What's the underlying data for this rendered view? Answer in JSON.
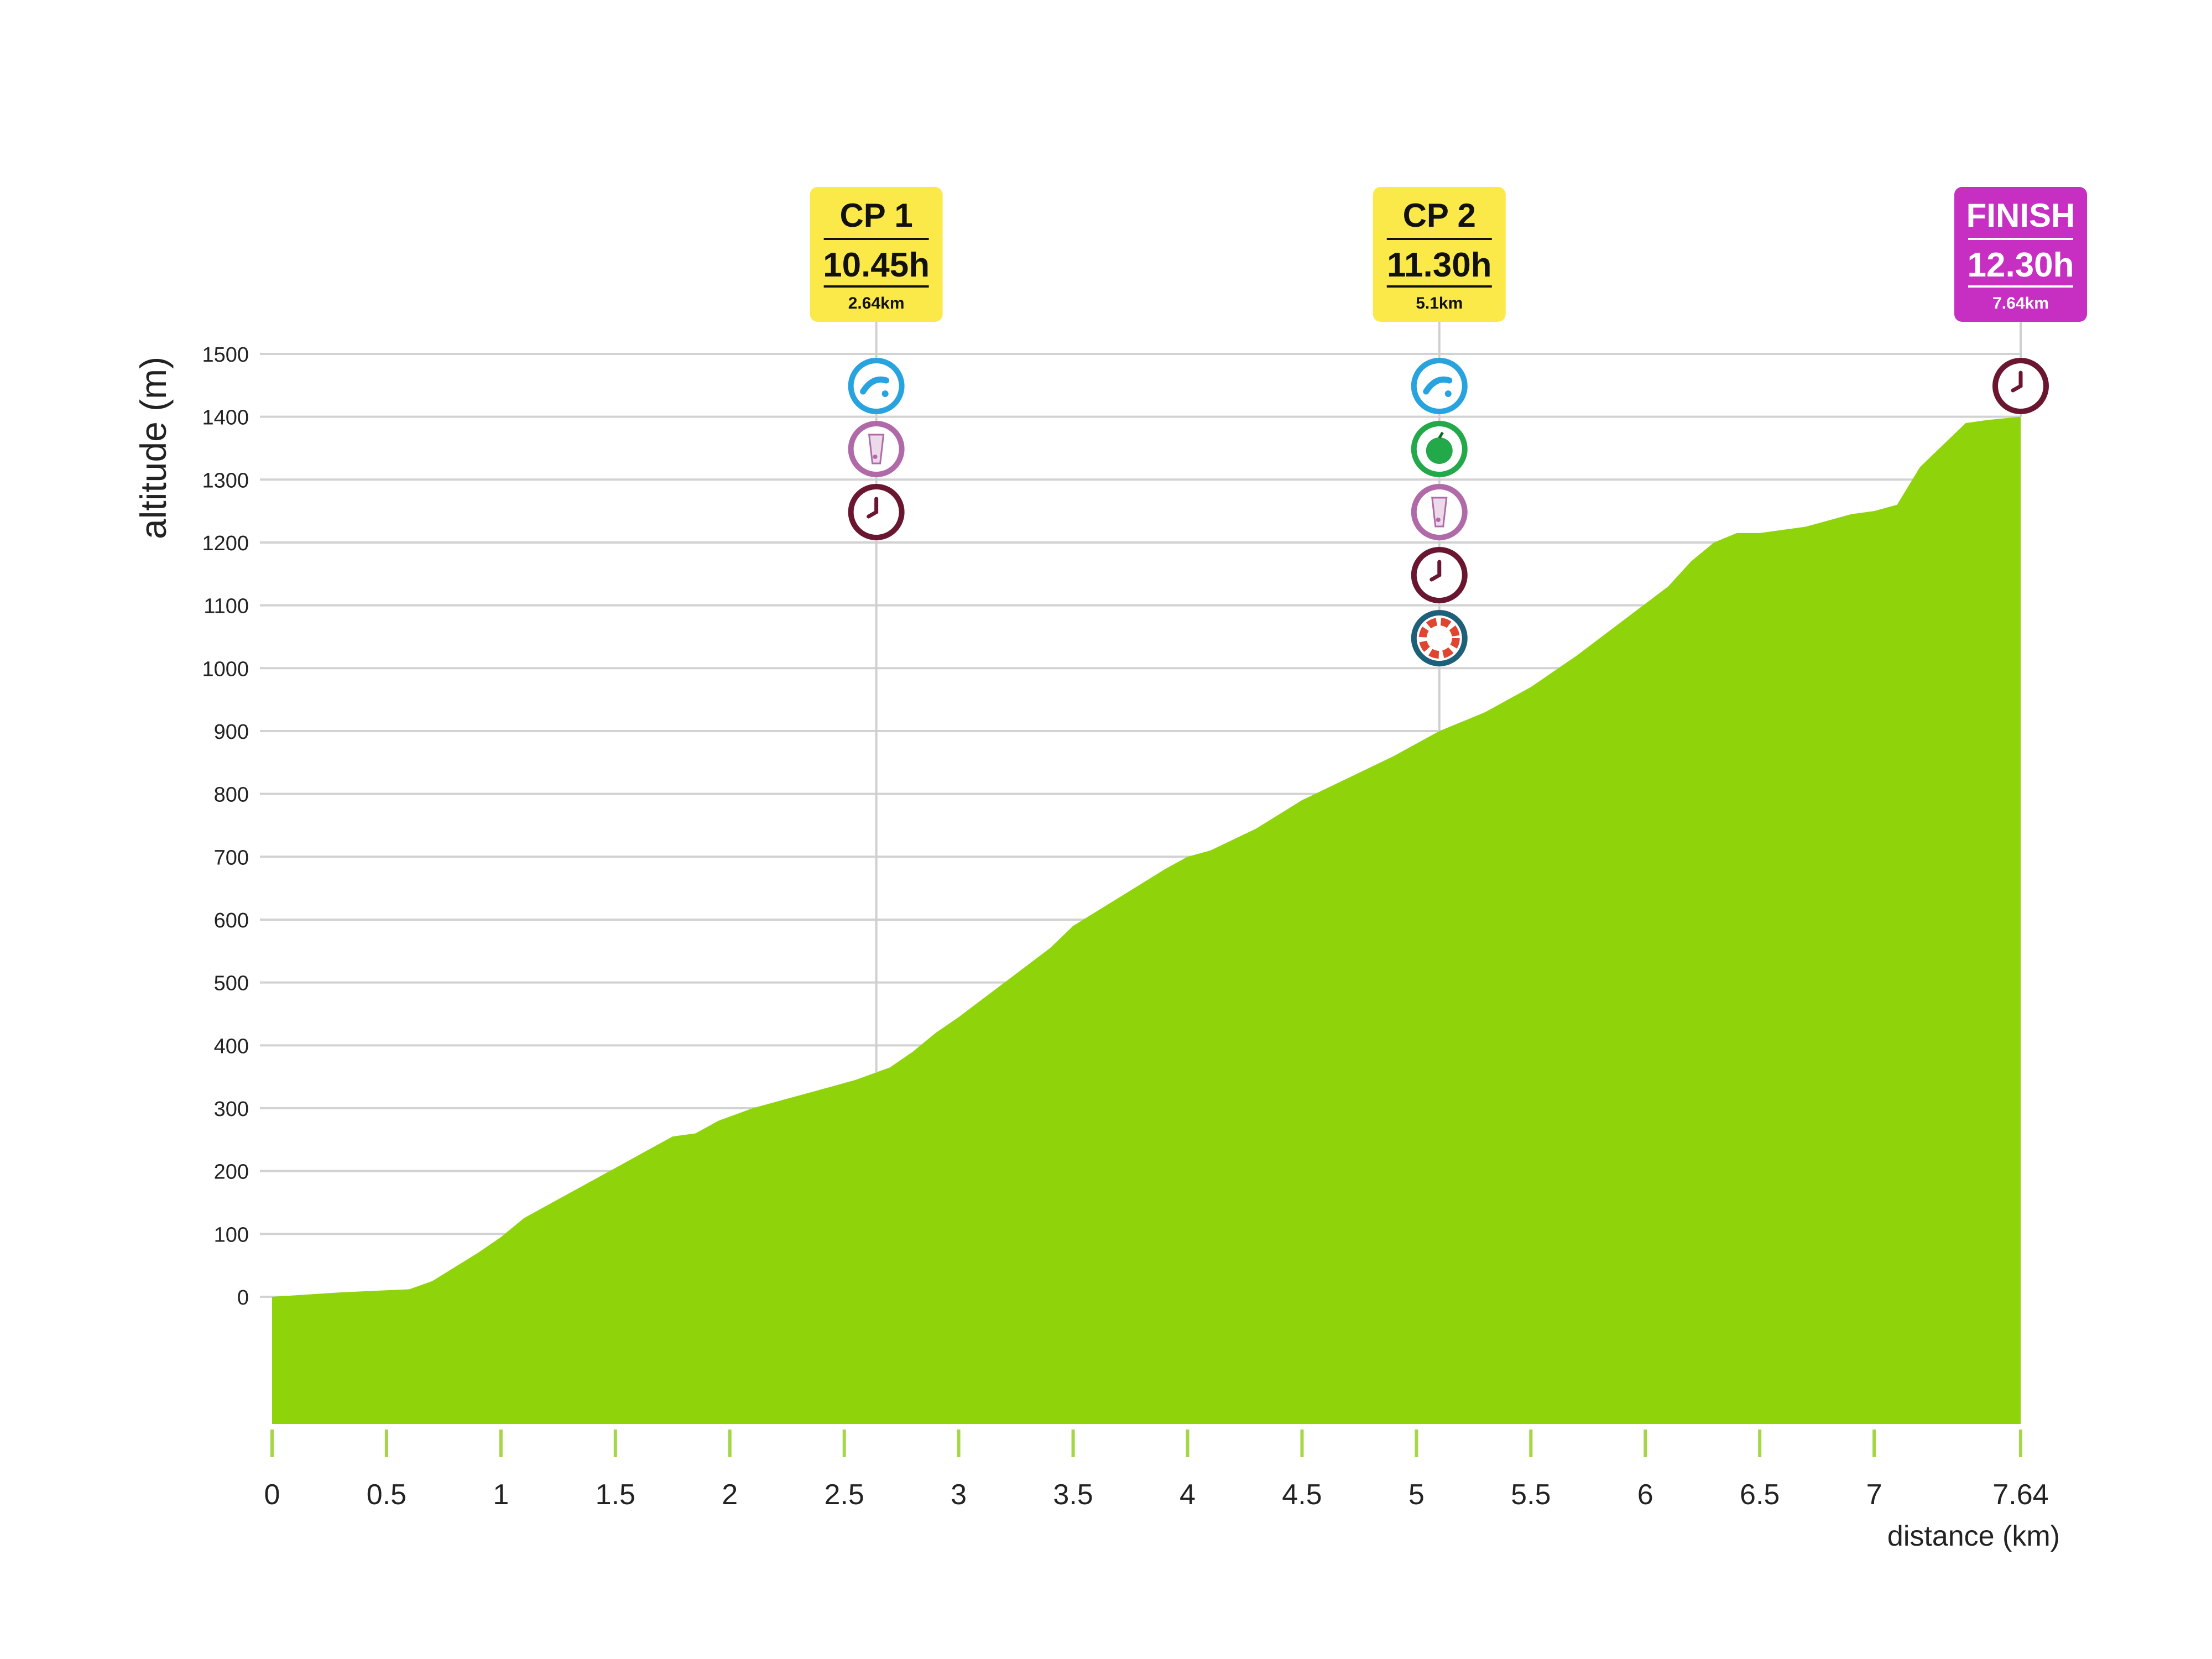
{
  "chart_data": {
    "type": "area",
    "ylabel": "altitude (m)",
    "xlabel": "distance (km)",
    "xlim": [
      0,
      7.64
    ],
    "ylim": [
      -200,
      1500
    ],
    "x_ticks": [
      {
        "value": 0,
        "label": "0"
      },
      {
        "value": 0.5,
        "label": "0.5"
      },
      {
        "value": 1,
        "label": "1"
      },
      {
        "value": 1.5,
        "label": "1.5"
      },
      {
        "value": 2,
        "label": "2"
      },
      {
        "value": 2.5,
        "label": "2.5"
      },
      {
        "value": 3,
        "label": "3"
      },
      {
        "value": 3.5,
        "label": "3.5"
      },
      {
        "value": 4,
        "label": "4"
      },
      {
        "value": 4.5,
        "label": "4.5"
      },
      {
        "value": 5,
        "label": "5"
      },
      {
        "value": 5.5,
        "label": "5.5"
      },
      {
        "value": 6,
        "label": "6"
      },
      {
        "value": 6.5,
        "label": "6.5"
      },
      {
        "value": 7,
        "label": "7"
      },
      {
        "value": 7.64,
        "label": "7.64"
      }
    ],
    "y_ticks": [
      {
        "value": 0,
        "label": "0"
      },
      {
        "value": 100,
        "label": "100"
      },
      {
        "value": 200,
        "label": "200"
      },
      {
        "value": 300,
        "label": "300"
      },
      {
        "value": 400,
        "label": "400"
      },
      {
        "value": 500,
        "label": "500"
      },
      {
        "value": 600,
        "label": "600"
      },
      {
        "value": 700,
        "label": "700"
      },
      {
        "value": 800,
        "label": "800"
      },
      {
        "value": 900,
        "label": "900"
      },
      {
        "value": 1000,
        "label": "1000"
      },
      {
        "value": 1100,
        "label": "1100"
      },
      {
        "value": 1200,
        "label": "1200"
      },
      {
        "value": 1300,
        "label": "1300"
      },
      {
        "value": 1400,
        "label": "1400"
      },
      {
        "value": 1500,
        "label": "1500"
      }
    ],
    "grid": true,
    "fill_color": "#8fd30a",
    "series": [
      {
        "x": [
          0,
          0.3,
          0.6,
          0.7,
          0.9,
          1.0,
          1.1,
          1.3,
          1.5,
          1.65,
          1.75,
          1.85,
          1.95,
          2.1,
          2.25,
          2.35,
          2.45,
          2.55,
          2.7,
          2.8,
          2.9,
          3.0,
          3.2,
          3.4,
          3.5,
          3.7,
          3.9,
          4.0,
          4.1,
          4.3,
          4.5,
          4.7,
          4.9,
          5.1,
          5.3,
          5.5,
          5.7,
          5.9,
          6.1,
          6.2,
          6.3,
          6.4,
          6.5,
          6.7,
          6.9,
          7.0,
          7.1,
          7.2,
          7.3,
          7.4,
          7.5,
          7.64
        ],
        "y": [
          0,
          7,
          12,
          25,
          70,
          95,
          125,
          165,
          205,
          235,
          255,
          260,
          280,
          300,
          315,
          325,
          335,
          345,
          365,
          390,
          420,
          445,
          500,
          555,
          590,
          635,
          680,
          700,
          710,
          745,
          790,
          825,
          860,
          900,
          930,
          970,
          1020,
          1075,
          1130,
          1170,
          1200,
          1215,
          1215,
          1225,
          1245,
          1250,
          1260,
          1320,
          1355,
          1390,
          1395,
          1400
        ]
      }
    ],
    "checkpoints": [
      {
        "name": "CP 1",
        "time": "10.45h",
        "distance_label": "2.64km",
        "x": 2.64,
        "box_color": "#fbe94a",
        "text_color": "#111111",
        "icons": [
          "water-tap-icon",
          "drink-icon",
          "clock-icon"
        ]
      },
      {
        "name": "CP 2",
        "time": "11.30h",
        "distance_label": "5.1km",
        "x": 5.1,
        "box_color": "#fbe94a",
        "text_color": "#111111",
        "icons": [
          "water-tap-icon",
          "food-icon",
          "drink-icon",
          "clock-icon",
          "medical-aid-icon"
        ]
      },
      {
        "name": "FINISH",
        "time": "12.30h",
        "distance_label": "7.64km",
        "x": 7.64,
        "box_color": "#c62fc1",
        "text_color": "#ffffff",
        "icons": [
          "clock-icon"
        ]
      }
    ],
    "icon_colors": {
      "water-tap-icon": "#27a3df",
      "drink-icon": "#b06aa8",
      "food-icon": "#23a84a",
      "clock-icon": "#6a1630",
      "medical-aid-icon": "#1e5f7a"
    }
  }
}
